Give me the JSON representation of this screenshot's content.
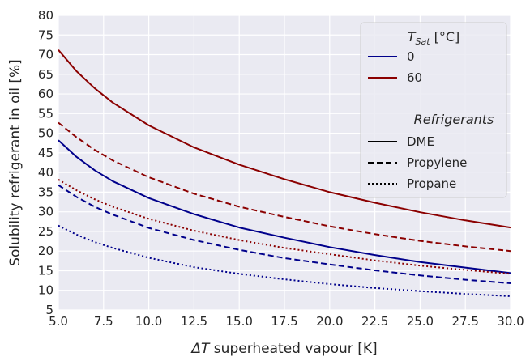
{
  "chart_data": {
    "type": "line",
    "xlabel_prefix": "ΔT",
    "xlabel_rest": " superheated vapour [K]",
    "ylabel": "Solubility refrigerant in oil [%]",
    "xlim": [
      5.0,
      30.0
    ],
    "ylim": [
      5,
      80
    ],
    "xticks": [
      "5.0",
      "7.5",
      "10.0",
      "12.5",
      "15.0",
      "17.5",
      "20.0",
      "22.5",
      "25.0",
      "27.5",
      "30.0"
    ],
    "yticks": [
      "5",
      "10",
      "15",
      "20",
      "25",
      "30",
      "35",
      "40",
      "45",
      "50",
      "55",
      "60",
      "65",
      "70",
      "75",
      "80"
    ],
    "grid": true,
    "legend_placement": "top-right",
    "legend": {
      "temp_title_main": "T",
      "temp_title_sub": "Sat",
      "temp_title_unit": " [°C]",
      "temp_entries": [
        {
          "label": "0",
          "color": "#00008b"
        },
        {
          "label": "60",
          "color": "#8b0000"
        }
      ],
      "refrigerant_title": "Refrigerants",
      "refrigerant_entries": [
        {
          "label": "DME",
          "style": "solid"
        },
        {
          "label": "Propylene",
          "style": "dashed"
        },
        {
          "label": "Propane",
          "style": "dotted"
        }
      ]
    },
    "x": [
      5,
      6,
      7,
      8,
      10,
      12.5,
      15,
      17.5,
      20,
      22.5,
      25,
      27.5,
      30
    ],
    "series": [
      {
        "refrigerant": "DME",
        "tsat": "60",
        "color": "#8b0000",
        "style": "solid",
        "values": [
          71.2,
          65.8,
          61.5,
          57.8,
          52.0,
          46.4,
          42.0,
          38.3,
          35.0,
          32.3,
          29.9,
          27.8,
          26.0
        ]
      },
      {
        "refrigerant": "Propylene",
        "tsat": "60",
        "color": "#8b0000",
        "style": "dashed",
        "values": [
          52.7,
          49.0,
          45.8,
          43.1,
          38.8,
          34.6,
          31.3,
          28.7,
          26.3,
          24.3,
          22.6,
          21.2,
          20.0
        ]
      },
      {
        "refrigerant": "DME",
        "tsat": "0",
        "color": "#00008b",
        "style": "solid",
        "values": [
          48.2,
          44.0,
          40.6,
          37.8,
          33.5,
          29.4,
          26.0,
          23.4,
          21.0,
          19.0,
          17.2,
          15.8,
          14.4
        ]
      },
      {
        "refrigerant": "Propane",
        "tsat": "60",
        "color": "#8b0000",
        "style": "dotted",
        "values": [
          38.2,
          35.5,
          33.2,
          31.3,
          28.2,
          25.2,
          22.8,
          20.8,
          19.2,
          17.6,
          16.3,
          15.2,
          14.2
        ]
      },
      {
        "refrigerant": "Propylene",
        "tsat": "0",
        "color": "#00008b",
        "style": "dashed",
        "values": [
          36.8,
          33.8,
          31.3,
          29.3,
          25.9,
          22.8,
          20.3,
          18.2,
          16.6,
          15.1,
          13.8,
          12.7,
          11.8
        ]
      },
      {
        "refrigerant": "Propane",
        "tsat": "0",
        "color": "#00008b",
        "style": "dotted",
        "values": [
          26.5,
          24.2,
          22.3,
          20.8,
          18.3,
          15.9,
          14.2,
          12.8,
          11.6,
          10.6,
          9.8,
          9.1,
          8.5
        ]
      }
    ]
  }
}
